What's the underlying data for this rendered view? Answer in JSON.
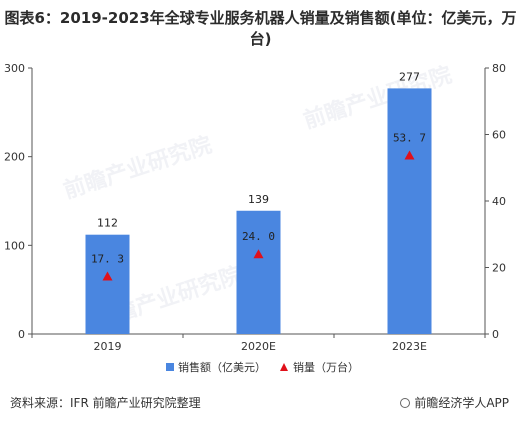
{
  "header": {
    "title": "图表6：2019-2023年全球专业服务机器人销量及销售额(单位：亿美元，万台)"
  },
  "chart_data": {
    "type": "bar",
    "categories": [
      "2019",
      "2020E",
      "2023E"
    ],
    "series": [
      {
        "name": "销售额（亿美元）",
        "kind": "bar",
        "axis": "left",
        "values": [
          112,
          139,
          277
        ],
        "color": "#4a86e0"
      },
      {
        "name": "销量（万台）",
        "kind": "triangle-marker",
        "axis": "right",
        "values": [
          17.3,
          24.0,
          53.7
        ],
        "labels": [
          "17. 3",
          "24. 0",
          "53. 7"
        ],
        "color": "#e0101a"
      }
    ],
    "ylim_left": [
      0,
      300
    ],
    "yticks_left": [
      0,
      100,
      200,
      300
    ],
    "ylim_right": [
      0,
      80
    ],
    "yticks_right": [
      0,
      20,
      40,
      60,
      80
    ],
    "grid": false,
    "legend": "bottom-center"
  },
  "footer": {
    "source": "资料来源：IFR 前瞻产业研究院整理",
    "brand": "前瞻经济学人APP"
  },
  "watermark": {
    "text": "前瞻产业研究院"
  }
}
